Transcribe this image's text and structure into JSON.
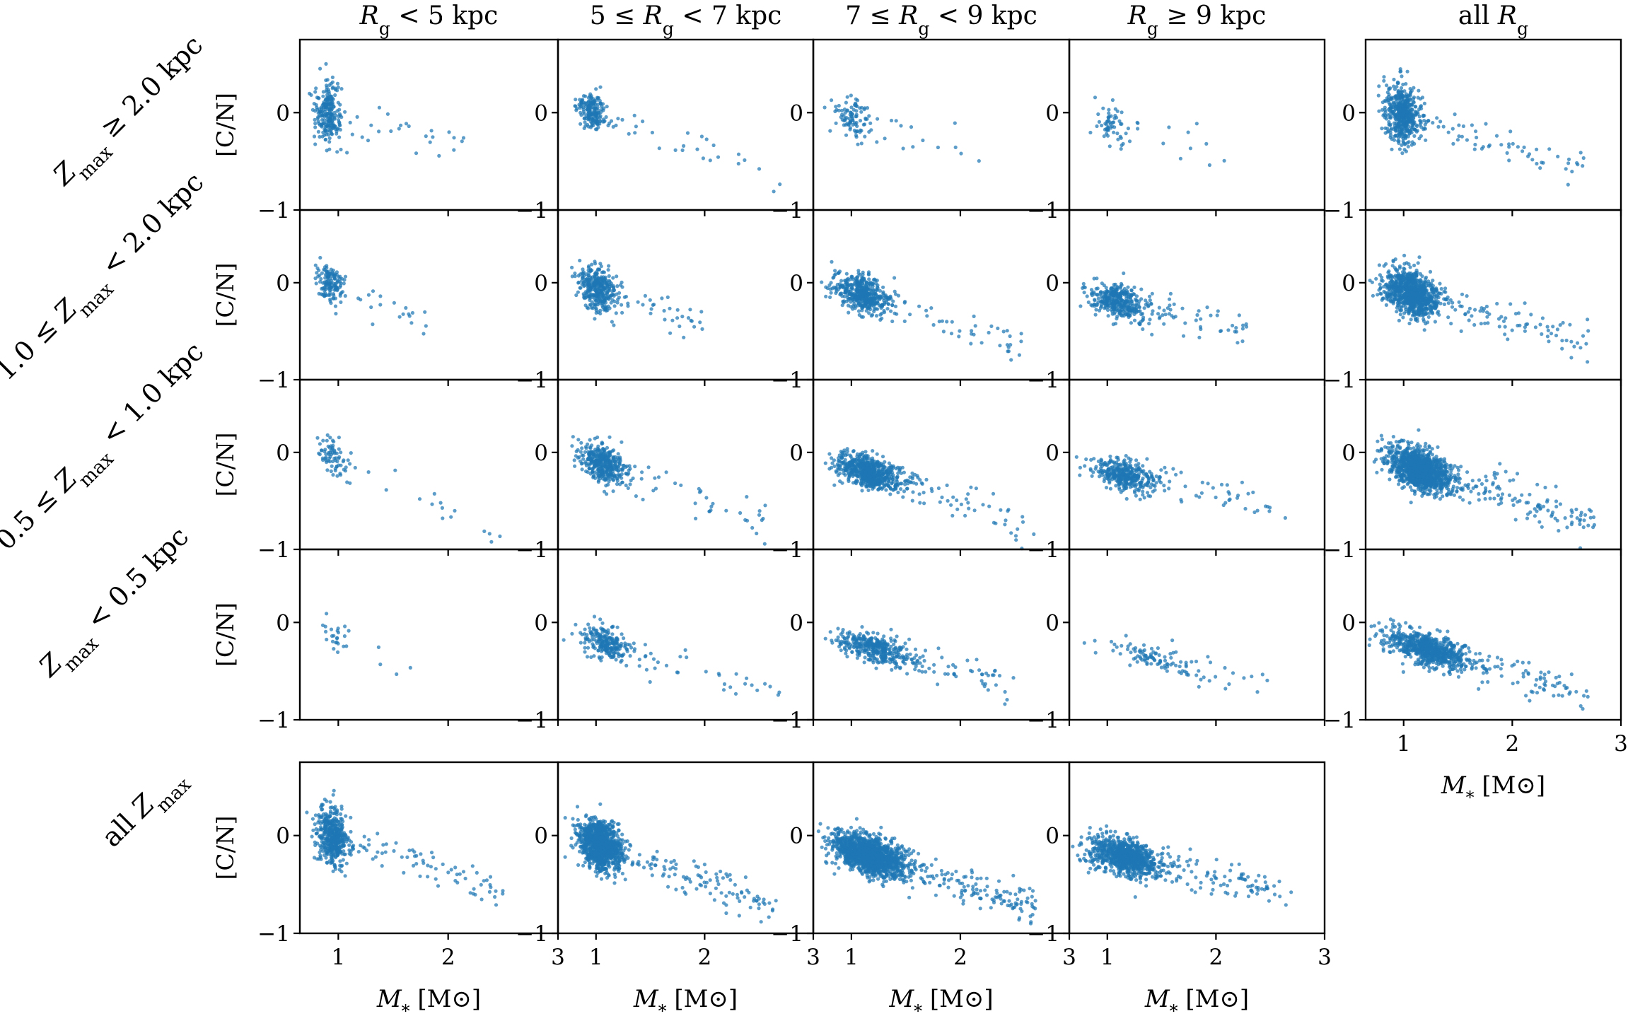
{
  "chart_data": {
    "type": "scatter",
    "title": "",
    "series_color": "#1f77b4",
    "xlabel": "M_* [M_⊙]",
    "ylabel": "[C/N]",
    "xlim": [
      0.65,
      3.0
    ],
    "ylim": [
      -1.0,
      0.75
    ],
    "x_ticks": [
      "1",
      "2",
      "3"
    ],
    "y_ticks": [
      "0",
      "−1"
    ],
    "column_titles": [
      "R_g < 5 kpc",
      "5 ≤ R_g < 7 kpc",
      "7 ≤ R_g < 9 kpc",
      "R_g ≥ 9 kpc",
      "all R_g"
    ],
    "row_titles": [
      "Z_max ≥ 2.0 kpc",
      "1.0 ≤ Z_max < 2.0 kpc",
      "0.5 ≤ Z_max < 1.0 kpc",
      "Z_max < 0.5 kpc",
      "all Z_max"
    ],
    "panels": [
      {
        "row": 0,
        "col": 0,
        "n": 260,
        "core_mass": 0.88,
        "core_cn": 0.02,
        "slope": -0.3,
        "mass_spread": 0.07,
        "cn_spread": 0.16,
        "tail_frac": 0.08,
        "max_mass": 2.2
      },
      {
        "row": 0,
        "col": 1,
        "n": 220,
        "core_mass": 0.93,
        "core_cn": 0.02,
        "slope": -0.4,
        "mass_spread": 0.08,
        "cn_spread": 0.09,
        "tail_frac": 0.12,
        "max_mass": 2.7
      },
      {
        "row": 0,
        "col": 2,
        "n": 110,
        "core_mass": 0.98,
        "core_cn": -0.05,
        "slope": -0.3,
        "mass_spread": 0.09,
        "cn_spread": 0.1,
        "tail_frac": 0.14,
        "max_mass": 2.2
      },
      {
        "row": 0,
        "col": 3,
        "n": 70,
        "core_mass": 0.98,
        "core_cn": -0.1,
        "slope": -0.3,
        "mass_spread": 0.1,
        "cn_spread": 0.11,
        "tail_frac": 0.25,
        "max_mass": 2.1
      },
      {
        "row": 0,
        "col": 4,
        "n": 560,
        "core_mass": 0.95,
        "core_cn": 0.0,
        "slope": -0.35,
        "mass_spread": 0.09,
        "cn_spread": 0.15,
        "tail_frac": 0.13,
        "max_mass": 2.7
      },
      {
        "row": 1,
        "col": 0,
        "n": 160,
        "core_mass": 0.9,
        "core_cn": 0.0,
        "slope": -0.4,
        "mass_spread": 0.07,
        "cn_spread": 0.09,
        "tail_frac": 0.16,
        "max_mass": 1.8
      },
      {
        "row": 1,
        "col": 1,
        "n": 380,
        "core_mass": 0.98,
        "core_cn": -0.05,
        "slope": -0.4,
        "mass_spread": 0.1,
        "cn_spread": 0.11,
        "tail_frac": 0.1,
        "max_mass": 2.0
      },
      {
        "row": 1,
        "col": 2,
        "n": 520,
        "core_mass": 1.05,
        "core_cn": -0.1,
        "slope": -0.35,
        "mass_spread": 0.15,
        "cn_spread": 0.09,
        "tail_frac": 0.1,
        "max_mass": 2.6
      },
      {
        "row": 1,
        "col": 3,
        "n": 420,
        "core_mass": 1.05,
        "core_cn": -0.18,
        "slope": -0.25,
        "mass_spread": 0.15,
        "cn_spread": 0.09,
        "tail_frac": 0.12,
        "max_mass": 2.3
      },
      {
        "row": 1,
        "col": 4,
        "n": 1000,
        "core_mass": 1.02,
        "core_cn": -0.1,
        "slope": -0.32,
        "mass_spread": 0.14,
        "cn_spread": 0.11,
        "tail_frac": 0.1,
        "max_mass": 2.7
      },
      {
        "row": 2,
        "col": 0,
        "n": 90,
        "core_mass": 0.92,
        "core_cn": -0.02,
        "slope": -0.5,
        "mass_spread": 0.08,
        "cn_spread": 0.1,
        "tail_frac": 0.2,
        "max_mass": 2.5
      },
      {
        "row": 2,
        "col": 1,
        "n": 420,
        "core_mass": 1.02,
        "core_cn": -0.1,
        "slope": -0.42,
        "mass_spread": 0.12,
        "cn_spread": 0.09,
        "tail_frac": 0.1,
        "max_mass": 2.6
      },
      {
        "row": 2,
        "col": 2,
        "n": 700,
        "core_mass": 1.1,
        "core_cn": -0.18,
        "slope": -0.35,
        "mass_spread": 0.18,
        "cn_spread": 0.08,
        "tail_frac": 0.1,
        "max_mass": 2.7
      },
      {
        "row": 2,
        "col": 3,
        "n": 420,
        "core_mass": 1.1,
        "core_cn": -0.22,
        "slope": -0.25,
        "mass_spread": 0.18,
        "cn_spread": 0.08,
        "tail_frac": 0.12,
        "max_mass": 2.7
      },
      {
        "row": 2,
        "col": 4,
        "n": 1400,
        "core_mass": 1.08,
        "core_cn": -0.15,
        "slope": -0.35,
        "mass_spread": 0.17,
        "cn_spread": 0.1,
        "tail_frac": 0.1,
        "max_mass": 2.8
      },
      {
        "row": 3,
        "col": 0,
        "n": 28,
        "core_mass": 0.95,
        "core_cn": -0.1,
        "slope": -0.5,
        "mass_spread": 0.1,
        "cn_spread": 0.1,
        "tail_frac": 0.25,
        "max_mass": 1.9
      },
      {
        "row": 3,
        "col": 1,
        "n": 260,
        "core_mass": 1.05,
        "core_cn": -0.2,
        "slope": -0.35,
        "mass_spread": 0.13,
        "cn_spread": 0.08,
        "tail_frac": 0.1,
        "max_mass": 2.7
      },
      {
        "row": 3,
        "col": 2,
        "n": 420,
        "core_mass": 1.15,
        "core_cn": -0.25,
        "slope": -0.3,
        "mass_spread": 0.22,
        "cn_spread": 0.07,
        "tail_frac": 0.15,
        "max_mass": 2.5
      },
      {
        "row": 3,
        "col": 3,
        "n": 110,
        "core_mass": 1.3,
        "core_cn": -0.33,
        "slope": -0.25,
        "mass_spread": 0.3,
        "cn_spread": 0.07,
        "tail_frac": 0.15,
        "max_mass": 2.5
      },
      {
        "row": 3,
        "col": 4,
        "n": 820,
        "core_mass": 1.15,
        "core_cn": -0.25,
        "slope": -0.32,
        "mass_spread": 0.22,
        "cn_spread": 0.08,
        "tail_frac": 0.12,
        "max_mass": 2.7
      },
      {
        "row": 4,
        "col": 0,
        "n": 540,
        "core_mass": 0.92,
        "core_cn": 0.0,
        "slope": -0.35,
        "mass_spread": 0.08,
        "cn_spread": 0.14,
        "tail_frac": 0.12,
        "max_mass": 2.5
      },
      {
        "row": 4,
        "col": 1,
        "n": 1250,
        "core_mass": 1.0,
        "core_cn": -0.08,
        "slope": -0.4,
        "mass_spread": 0.11,
        "cn_spread": 0.12,
        "tail_frac": 0.1,
        "max_mass": 2.7
      },
      {
        "row": 4,
        "col": 2,
        "n": 1700,
        "core_mass": 1.1,
        "core_cn": -0.18,
        "slope": -0.35,
        "mass_spread": 0.18,
        "cn_spread": 0.09,
        "tail_frac": 0.1,
        "max_mass": 2.7
      },
      {
        "row": 4,
        "col": 3,
        "n": 1000,
        "core_mass": 1.1,
        "core_cn": -0.2,
        "slope": -0.25,
        "mass_spread": 0.18,
        "cn_spread": 0.09,
        "tail_frac": 0.12,
        "max_mass": 2.7
      }
    ]
  }
}
